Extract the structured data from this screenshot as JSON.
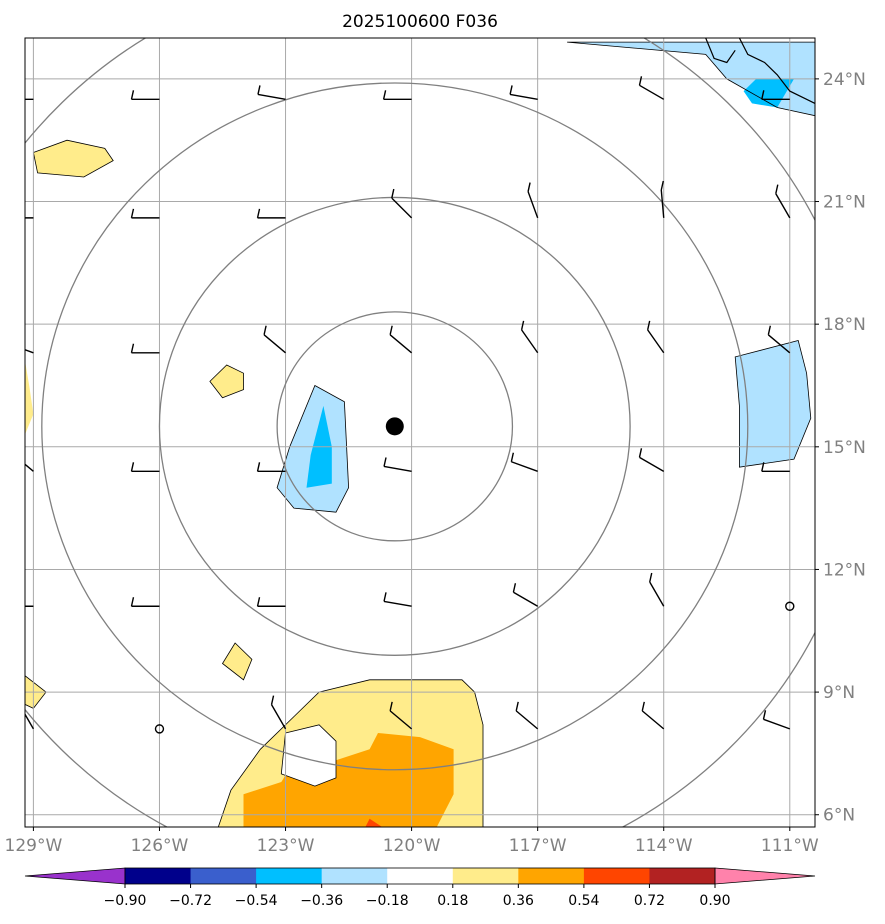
{
  "chart_data": {
    "type": "map",
    "title": "2025100600 F036",
    "projection": "plate-carree",
    "lon_range": [
      -129.2,
      -110.4
    ],
    "lat_range": [
      5.7,
      25.0
    ],
    "x_ticks": [
      {
        "value": -129,
        "label": "129°W"
      },
      {
        "value": -126,
        "label": "126°W"
      },
      {
        "value": -123,
        "label": "123°W"
      },
      {
        "value": -120,
        "label": "120°W"
      },
      {
        "value": -117,
        "label": "117°W"
      },
      {
        "value": -114,
        "label": "114°W"
      },
      {
        "value": -111,
        "label": "111°W"
      }
    ],
    "y_ticks": [
      {
        "value": 24,
        "label": "24°N"
      },
      {
        "value": 21,
        "label": "21°N"
      },
      {
        "value": 18,
        "label": "18°N"
      },
      {
        "value": 15,
        "label": "15°N"
      },
      {
        "value": 12,
        "label": "12°N"
      },
      {
        "value": 9,
        "label": "9°N"
      },
      {
        "value": 6,
        "label": "6°N"
      }
    ],
    "storm_center": {
      "lon": -120.4,
      "lat": 15.5
    },
    "range_rings_deg": [
      2.8,
      5.6,
      8.4,
      11.2
    ],
    "colorbar": {
      "levels": [
        -0.9,
        -0.72,
        -0.54,
        -0.36,
        -0.18,
        0.18,
        0.36,
        0.54,
        0.72,
        0.9
      ],
      "labels": [
        "−0.90",
        "−0.72",
        "−0.54",
        "−0.36",
        "−0.18",
        "0.18",
        "0.36",
        "0.54",
        "0.72",
        "0.90"
      ],
      "colors": [
        "#9932cc",
        "#00008b",
        "#3a5fcd",
        "#00bfff",
        "#b0e2ff",
        "#ffffff",
        "#ffec8b",
        "#ffa500",
        "#ff4500",
        "#b22222",
        "#ff82ab"
      ]
    },
    "shaded_regions": [
      {
        "color": "#b0e2ff",
        "level": "-0.36 to -0.18",
        "lonlat": [
          [
            -116.3,
            24.9
          ],
          [
            -110.4,
            24.9
          ],
          [
            -110.4,
            23.1
          ],
          [
            -111.3,
            23.3
          ],
          [
            -112.5,
            24.0
          ],
          [
            -113.0,
            24.6
          ]
        ]
      },
      {
        "color": "#00bfff",
        "level": "-0.54 to -0.36",
        "lonlat": [
          [
            -111.8,
            24.0
          ],
          [
            -110.9,
            24.0
          ],
          [
            -111.3,
            23.3
          ],
          [
            -111.9,
            23.4
          ],
          [
            -112.1,
            23.7
          ]
        ]
      },
      {
        "color": "#ffec8b",
        "level": "0.18 to 0.36",
        "lonlat": [
          [
            -129.0,
            22.2
          ],
          [
            -128.2,
            22.5
          ],
          [
            -127.3,
            22.3
          ],
          [
            -127.1,
            22.0
          ],
          [
            -127.8,
            21.6
          ],
          [
            -128.9,
            21.7
          ]
        ]
      },
      {
        "color": "#ffec8b",
        "level": "0.18 to 0.36",
        "lonlat": [
          [
            -124.4,
            17.0
          ],
          [
            -124.0,
            16.8
          ],
          [
            -124.0,
            16.4
          ],
          [
            -124.5,
            16.2
          ],
          [
            -124.8,
            16.6
          ]
        ]
      },
      {
        "color": "#ffec8b",
        "level": "0.18 to 0.36",
        "lonlat": [
          [
            -129.2,
            17.1
          ],
          [
            -129.1,
            16.5
          ],
          [
            -129.0,
            15.8
          ],
          [
            -129.2,
            15.3
          ]
        ]
      },
      {
        "color": "#b0e2ff",
        "level": "-0.36 to -0.18",
        "lonlat": [
          [
            -122.3,
            16.5
          ],
          [
            -121.6,
            16.1
          ],
          [
            -121.5,
            14.0
          ],
          [
            -121.8,
            13.4
          ],
          [
            -122.8,
            13.5
          ],
          [
            -123.2,
            14.0
          ],
          [
            -122.9,
            15.0
          ]
        ]
      },
      {
        "color": "#00bfff",
        "level": "-0.54 to -0.36",
        "lonlat": [
          [
            -122.1,
            16.0
          ],
          [
            -121.9,
            15.0
          ],
          [
            -121.9,
            14.1
          ],
          [
            -122.5,
            14.0
          ],
          [
            -122.4,
            14.8
          ]
        ]
      },
      {
        "color": "#b0e2ff",
        "level": "-0.36 to -0.18",
        "lonlat": [
          [
            -110.8,
            17.6
          ],
          [
            -110.6,
            16.8
          ],
          [
            -110.5,
            15.7
          ],
          [
            -110.9,
            14.7
          ],
          [
            -112.2,
            14.5
          ],
          [
            -112.2,
            16.0
          ],
          [
            -112.3,
            17.2
          ]
        ]
      },
      {
        "color": "#ffec8b",
        "level": "0.18 to 0.36",
        "lonlat": [
          [
            -124.2,
            10.2
          ],
          [
            -123.8,
            9.8
          ],
          [
            -124.0,
            9.3
          ],
          [
            -124.5,
            9.7
          ]
        ]
      },
      {
        "color": "#ffec8b",
        "level": "0.18 to 0.36",
        "lonlat": [
          [
            -129.2,
            9.4
          ],
          [
            -128.7,
            9.0
          ],
          [
            -129.0,
            8.6
          ],
          [
            -129.2,
            8.7
          ]
        ]
      },
      {
        "color": "#ffec8b",
        "level": "0.18 to 0.36",
        "lonlat": [
          [
            -121.0,
            9.3
          ],
          [
            -118.8,
            9.3
          ],
          [
            -118.5,
            9.0
          ],
          [
            -118.3,
            8.2
          ],
          [
            -118.3,
            5.7
          ],
          [
            -124.6,
            5.7
          ],
          [
            -124.3,
            6.6
          ],
          [
            -123.6,
            7.6
          ],
          [
            -122.8,
            8.4
          ],
          [
            -122.2,
            9.0
          ]
        ]
      },
      {
        "color": "#ffa500",
        "level": "0.36 to 0.54",
        "lonlat": [
          [
            -120.8,
            8.0
          ],
          [
            -119.8,
            7.9
          ],
          [
            -119.0,
            7.6
          ],
          [
            -119.0,
            6.5
          ],
          [
            -119.4,
            5.7
          ],
          [
            -124.0,
            5.7
          ],
          [
            -124.0,
            6.5
          ],
          [
            -123.1,
            6.8
          ],
          [
            -122.8,
            7.3
          ],
          [
            -121.9,
            7.3
          ],
          [
            -121.0,
            7.6
          ]
        ]
      },
      {
        "color": "#ff4500",
        "level": "0.54 to 0.72",
        "lonlat": [
          [
            -121.0,
            5.9
          ],
          [
            -120.7,
            5.7
          ],
          [
            -121.1,
            5.7
          ]
        ]
      },
      {
        "color": "#ffffff",
        "level": "-0.18 to 0.18",
        "lonlat": [
          [
            -123.0,
            8.0
          ],
          [
            -122.2,
            8.2
          ],
          [
            -121.8,
            7.8
          ],
          [
            -121.8,
            6.9
          ],
          [
            -122.3,
            6.7
          ],
          [
            -123.1,
            7.0
          ]
        ]
      }
    ],
    "wind_barbs_note": "rows at 23.5N, 20.6N, 17.3N, 14.4N, 11.1N, 8.1N; columns at 129W-111W"
  }
}
